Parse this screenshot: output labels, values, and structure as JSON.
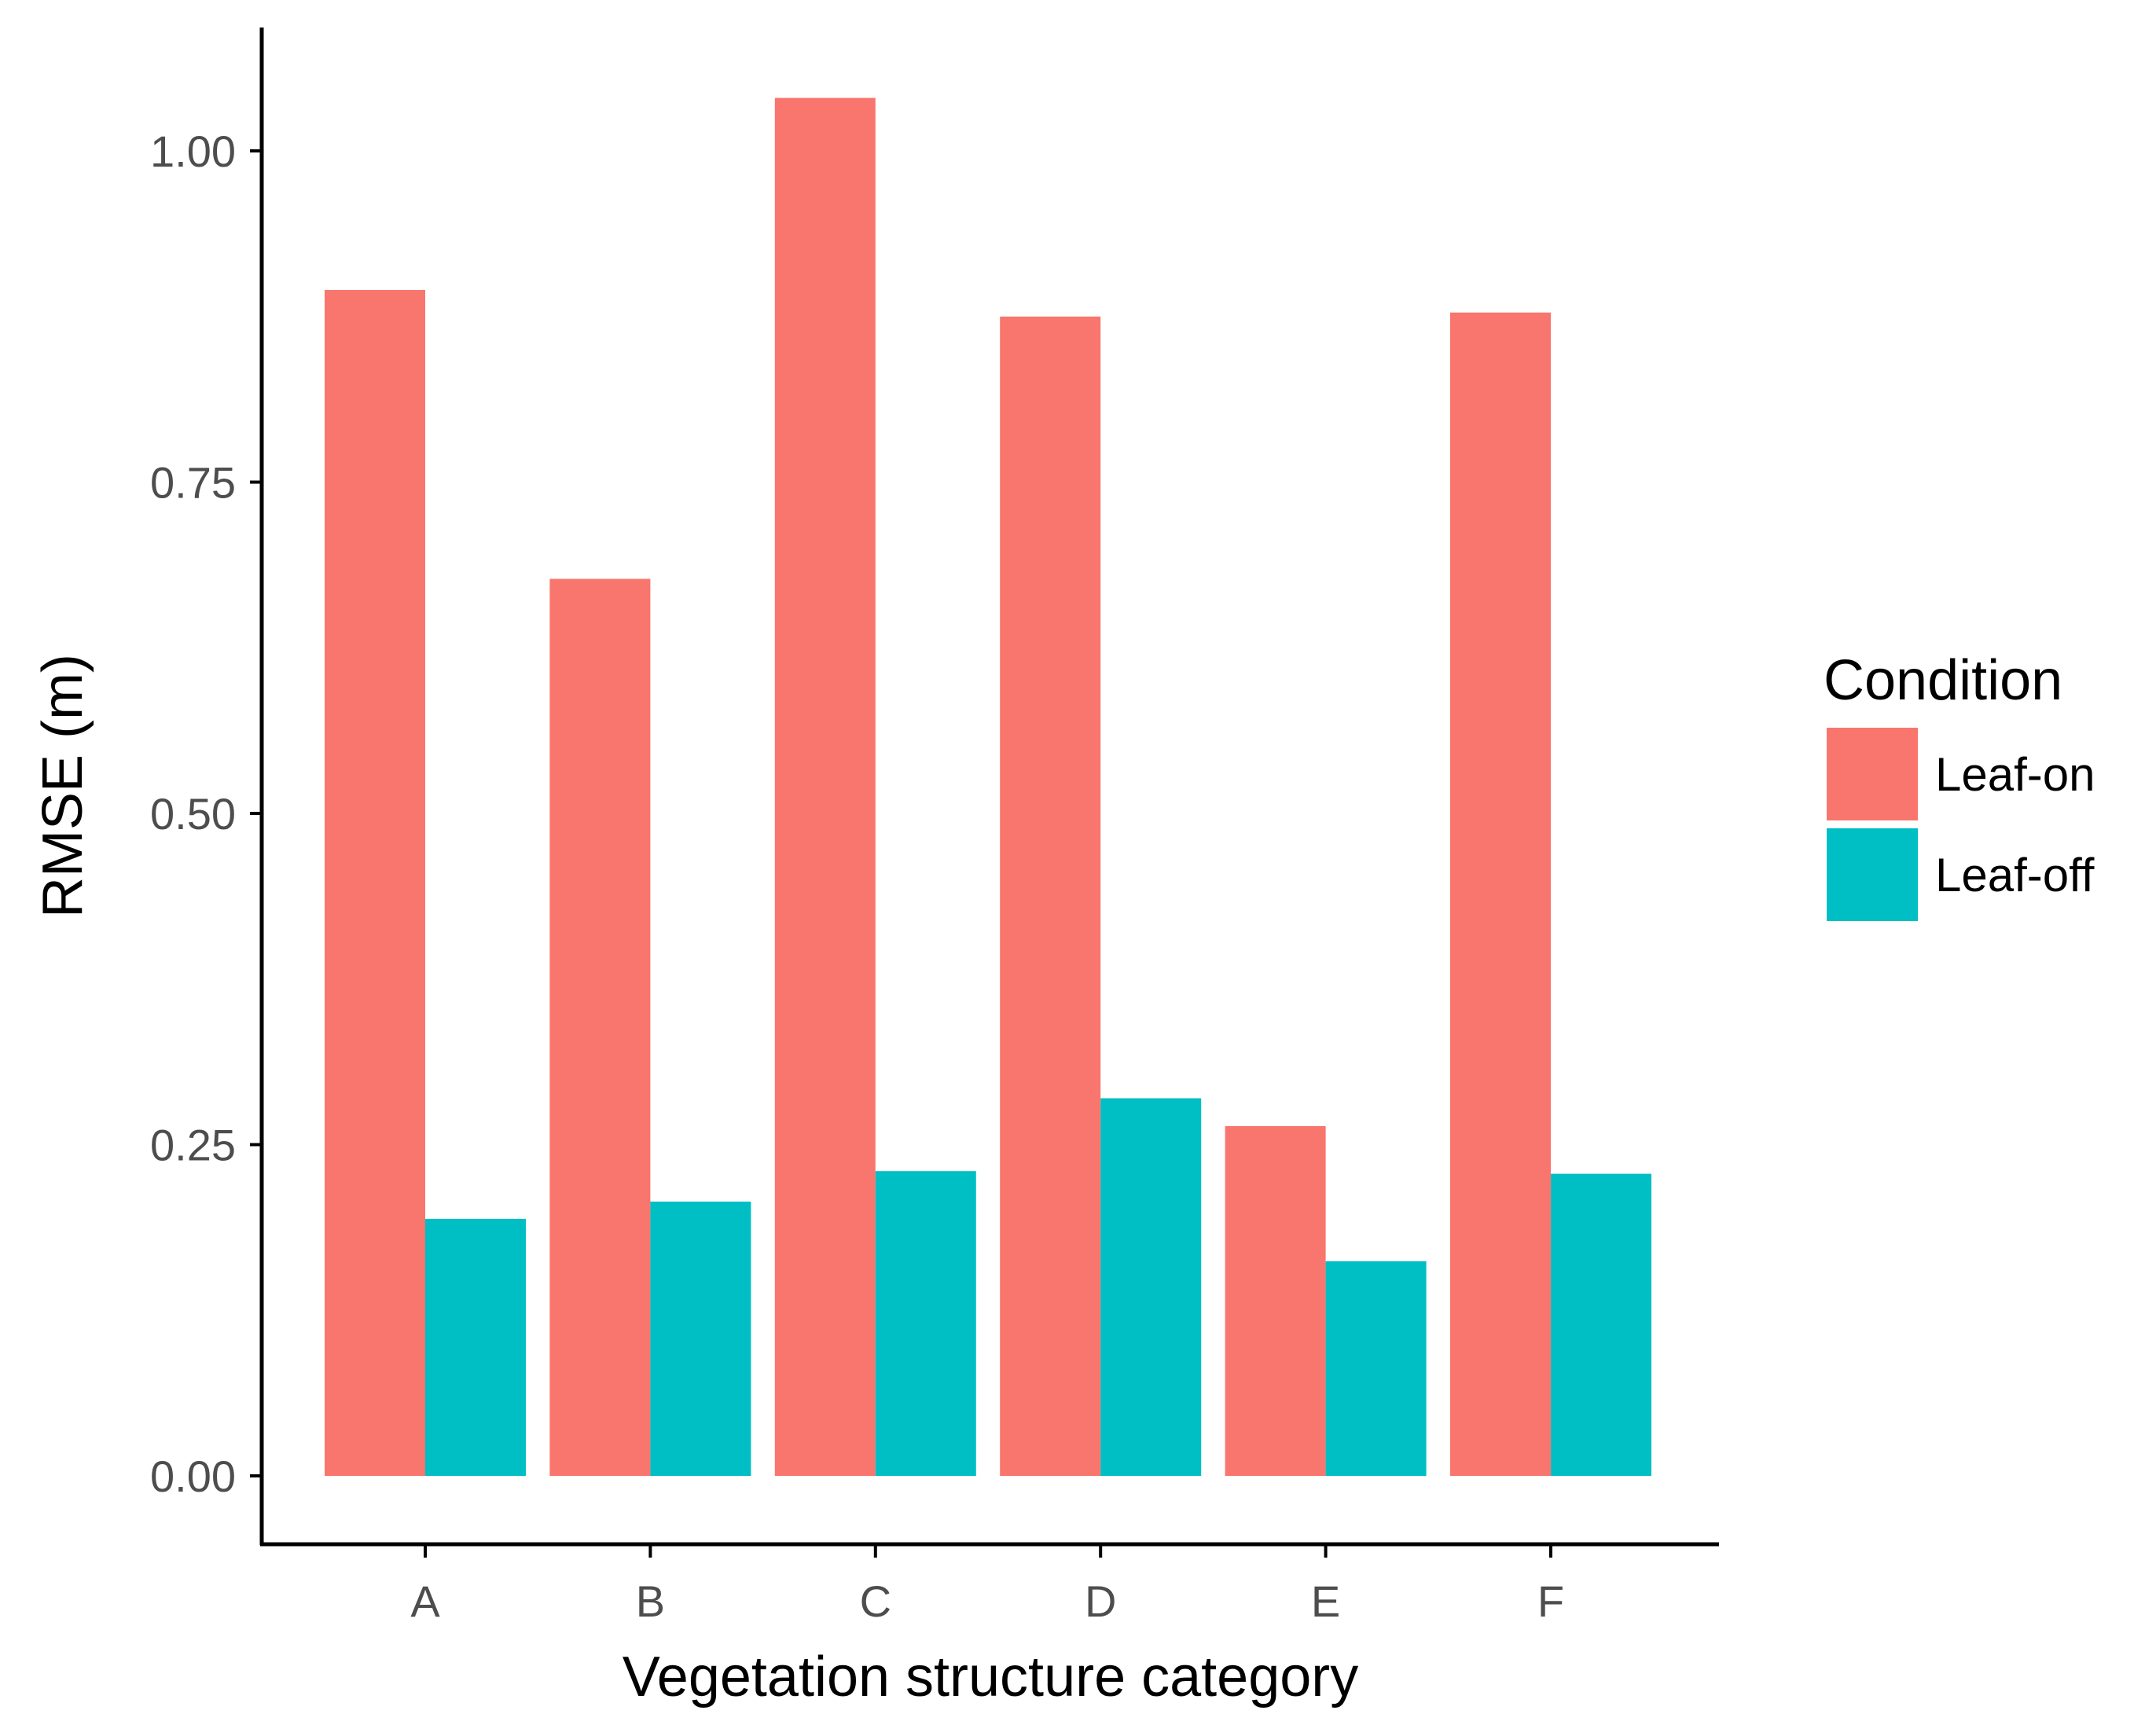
{
  "chart_data": {
    "type": "bar",
    "title": "",
    "xlabel": "Vegetation structure category",
    "ylabel": "RMSE (m)",
    "categories": [
      "A",
      "B",
      "C",
      "D",
      "E",
      "F"
    ],
    "ylim": [
      -0.047,
      1.1
    ],
    "yticks": [
      0.0,
      0.25,
      0.5,
      0.75,
      1.0
    ],
    "ytick_labels": [
      "0.00",
      "0.25",
      "0.50",
      "0.75",
      "1.00"
    ],
    "grid": false,
    "legend": {
      "title": "Condition",
      "position": "right"
    },
    "series": [
      {
        "name": "Leaf-on",
        "color": "#F8766D",
        "values": [
          0.895,
          0.677,
          1.04,
          0.875,
          0.264,
          0.878
        ]
      },
      {
        "name": "Leaf-off",
        "color": "#00BFC4",
        "values": [
          0.194,
          0.207,
          0.23,
          0.285,
          0.162,
          0.228
        ]
      }
    ]
  }
}
